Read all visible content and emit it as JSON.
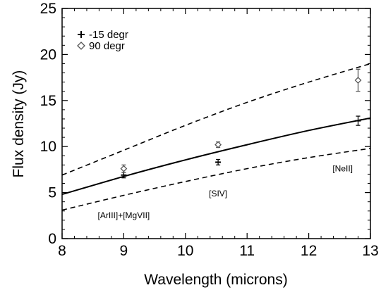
{
  "chart_data": {
    "type": "scatter",
    "title": "",
    "xlabel": "Wavelength (microns)",
    "ylabel": "Flux density (Jy)",
    "xlim": [
      8,
      13
    ],
    "ylim": [
      0,
      25
    ],
    "xticks": [
      8,
      9,
      10,
      11,
      12,
      13
    ],
    "yticks": [
      0,
      5,
      10,
      15,
      20,
      25
    ],
    "grid": false,
    "legend_position": "top-left",
    "series": [
      {
        "name": "-15 degr",
        "marker": "plus",
        "color": "#000000",
        "points": [
          {
            "x": 9.0,
            "y": 6.9,
            "err": 0.3
          },
          {
            "x": 10.53,
            "y": 8.3,
            "err": 0.3
          },
          {
            "x": 12.8,
            "y": 12.8,
            "err": 0.5
          }
        ]
      },
      {
        "name": "90 degr",
        "marker": "diamond",
        "color": "#555555",
        "points": [
          {
            "x": 9.0,
            "y": 7.6,
            "err": 0.4
          },
          {
            "x": 10.53,
            "y": 10.2,
            "err": 0.3
          },
          {
            "x": 12.8,
            "y": 17.2,
            "err": 1.2
          }
        ]
      }
    ],
    "curves": [
      {
        "style": "solid",
        "x": [
          8,
          9,
          10,
          11,
          12,
          13
        ],
        "y": [
          4.8,
          6.75,
          8.55,
          10.2,
          11.75,
          13.1
        ]
      },
      {
        "style": "dashed",
        "x": [
          8,
          9,
          10,
          11,
          12,
          13
        ],
        "y": [
          6.9,
          9.6,
          12.3,
          14.8,
          17.0,
          19.0
        ]
      },
      {
        "style": "dashed",
        "x": [
          8,
          9,
          10,
          11,
          12,
          13
        ],
        "y": [
          3.1,
          4.7,
          6.2,
          7.6,
          8.8,
          9.8
        ]
      }
    ],
    "annotations": [
      {
        "text": "[ArIII]+[MgVII]",
        "x": 9.0,
        "y": 2.2
      },
      {
        "text": "[SIV]",
        "x": 10.53,
        "y": 4.6
      },
      {
        "text": "[NeII]",
        "x": 12.55,
        "y": 7.3
      }
    ]
  }
}
